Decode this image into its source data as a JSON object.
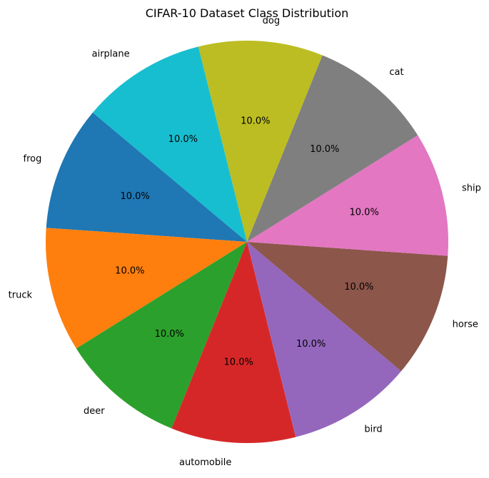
{
  "chart_data": {
    "type": "pie",
    "title": "CIFAR-10 Dataset Class Distribution",
    "start_angle_deg": 140,
    "direction": "counterclockwise",
    "slices": [
      {
        "label": "frog",
        "value": 10.0,
        "pct_label": "10.0%",
        "color": "#1f77b4"
      },
      {
        "label": "truck",
        "value": 10.0,
        "pct_label": "10.0%",
        "color": "#ff7f0e"
      },
      {
        "label": "deer",
        "value": 10.0,
        "pct_label": "10.0%",
        "color": "#2ca02c"
      },
      {
        "label": "automobile",
        "value": 10.0,
        "pct_label": "10.0%",
        "color": "#d62728"
      },
      {
        "label": "bird",
        "value": 10.0,
        "pct_label": "10.0%",
        "color": "#9467bd"
      },
      {
        "label": "horse",
        "value": 10.0,
        "pct_label": "10.0%",
        "color": "#8c564b"
      },
      {
        "label": "ship",
        "value": 10.0,
        "pct_label": "10.0%",
        "color": "#e377c2"
      },
      {
        "label": "cat",
        "value": 10.0,
        "pct_label": "10.0%",
        "color": "#7f7f7f"
      },
      {
        "label": "dog",
        "value": 10.0,
        "pct_label": "10.0%",
        "color": "#bcbd22"
      },
      {
        "label": "airplane",
        "value": 10.0,
        "pct_label": "10.0%",
        "color": "#17becf"
      }
    ]
  }
}
